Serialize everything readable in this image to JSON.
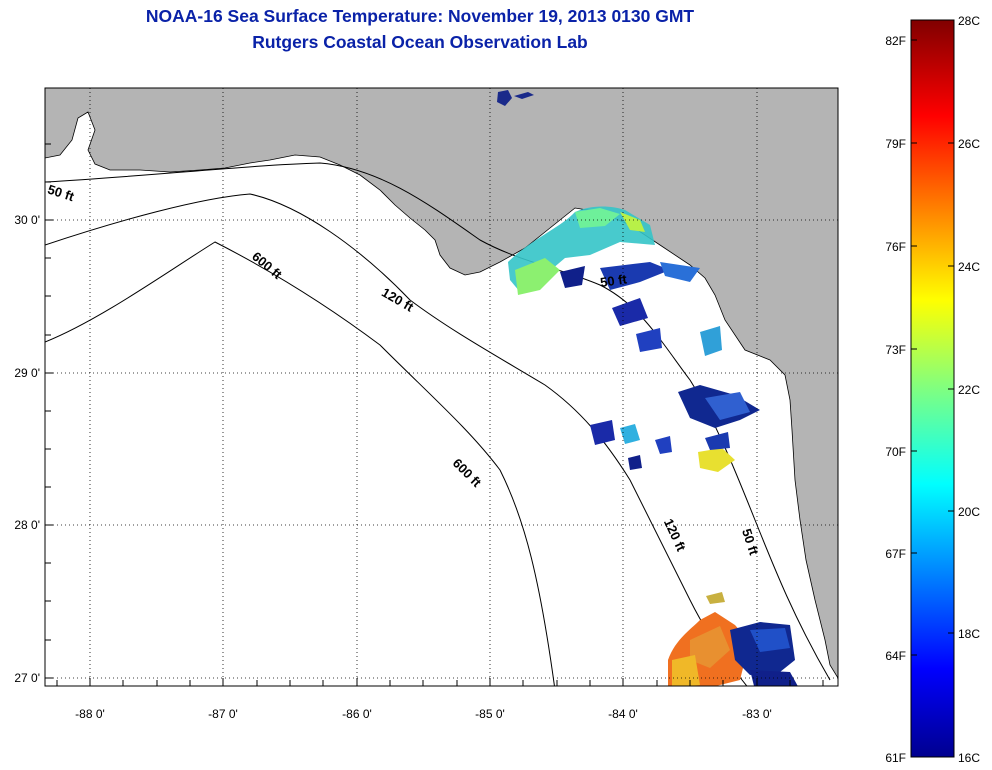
{
  "title_line1": "NOAA-16 Sea Surface Temperature:  November 19, 2013 0130 GMT",
  "title_line2": "Rutgers Coastal Ocean Observation Lab",
  "colors": {
    "land": "#b4b4b4",
    "ocean": "#ffffff",
    "title": "#0a22a8"
  },
  "axes": {
    "lon_ticks": [
      "-88 0'",
      "-87 0'",
      "-86 0'",
      "-85 0'",
      "-84 0'",
      "-83 0'"
    ],
    "lat_ticks": [
      "30 0'",
      "29 0'",
      "28 0'",
      "27 0'"
    ]
  },
  "contours": {
    "c50_west": "50 ft",
    "c50_east": "50 ft",
    "c50_coast": "50 ft",
    "c120_west": "120 ft",
    "c120_east": "120 ft",
    "c600_north": "600 ft",
    "c600_south": "600 ft"
  },
  "colorbar": {
    "celsius": [
      "28C",
      "26C",
      "24C",
      "22C",
      "20C",
      "18C",
      "16C"
    ],
    "fahrenheit": [
      "82F",
      "79F",
      "76F",
      "73F",
      "70F",
      "67F",
      "64F",
      "61F"
    ]
  }
}
